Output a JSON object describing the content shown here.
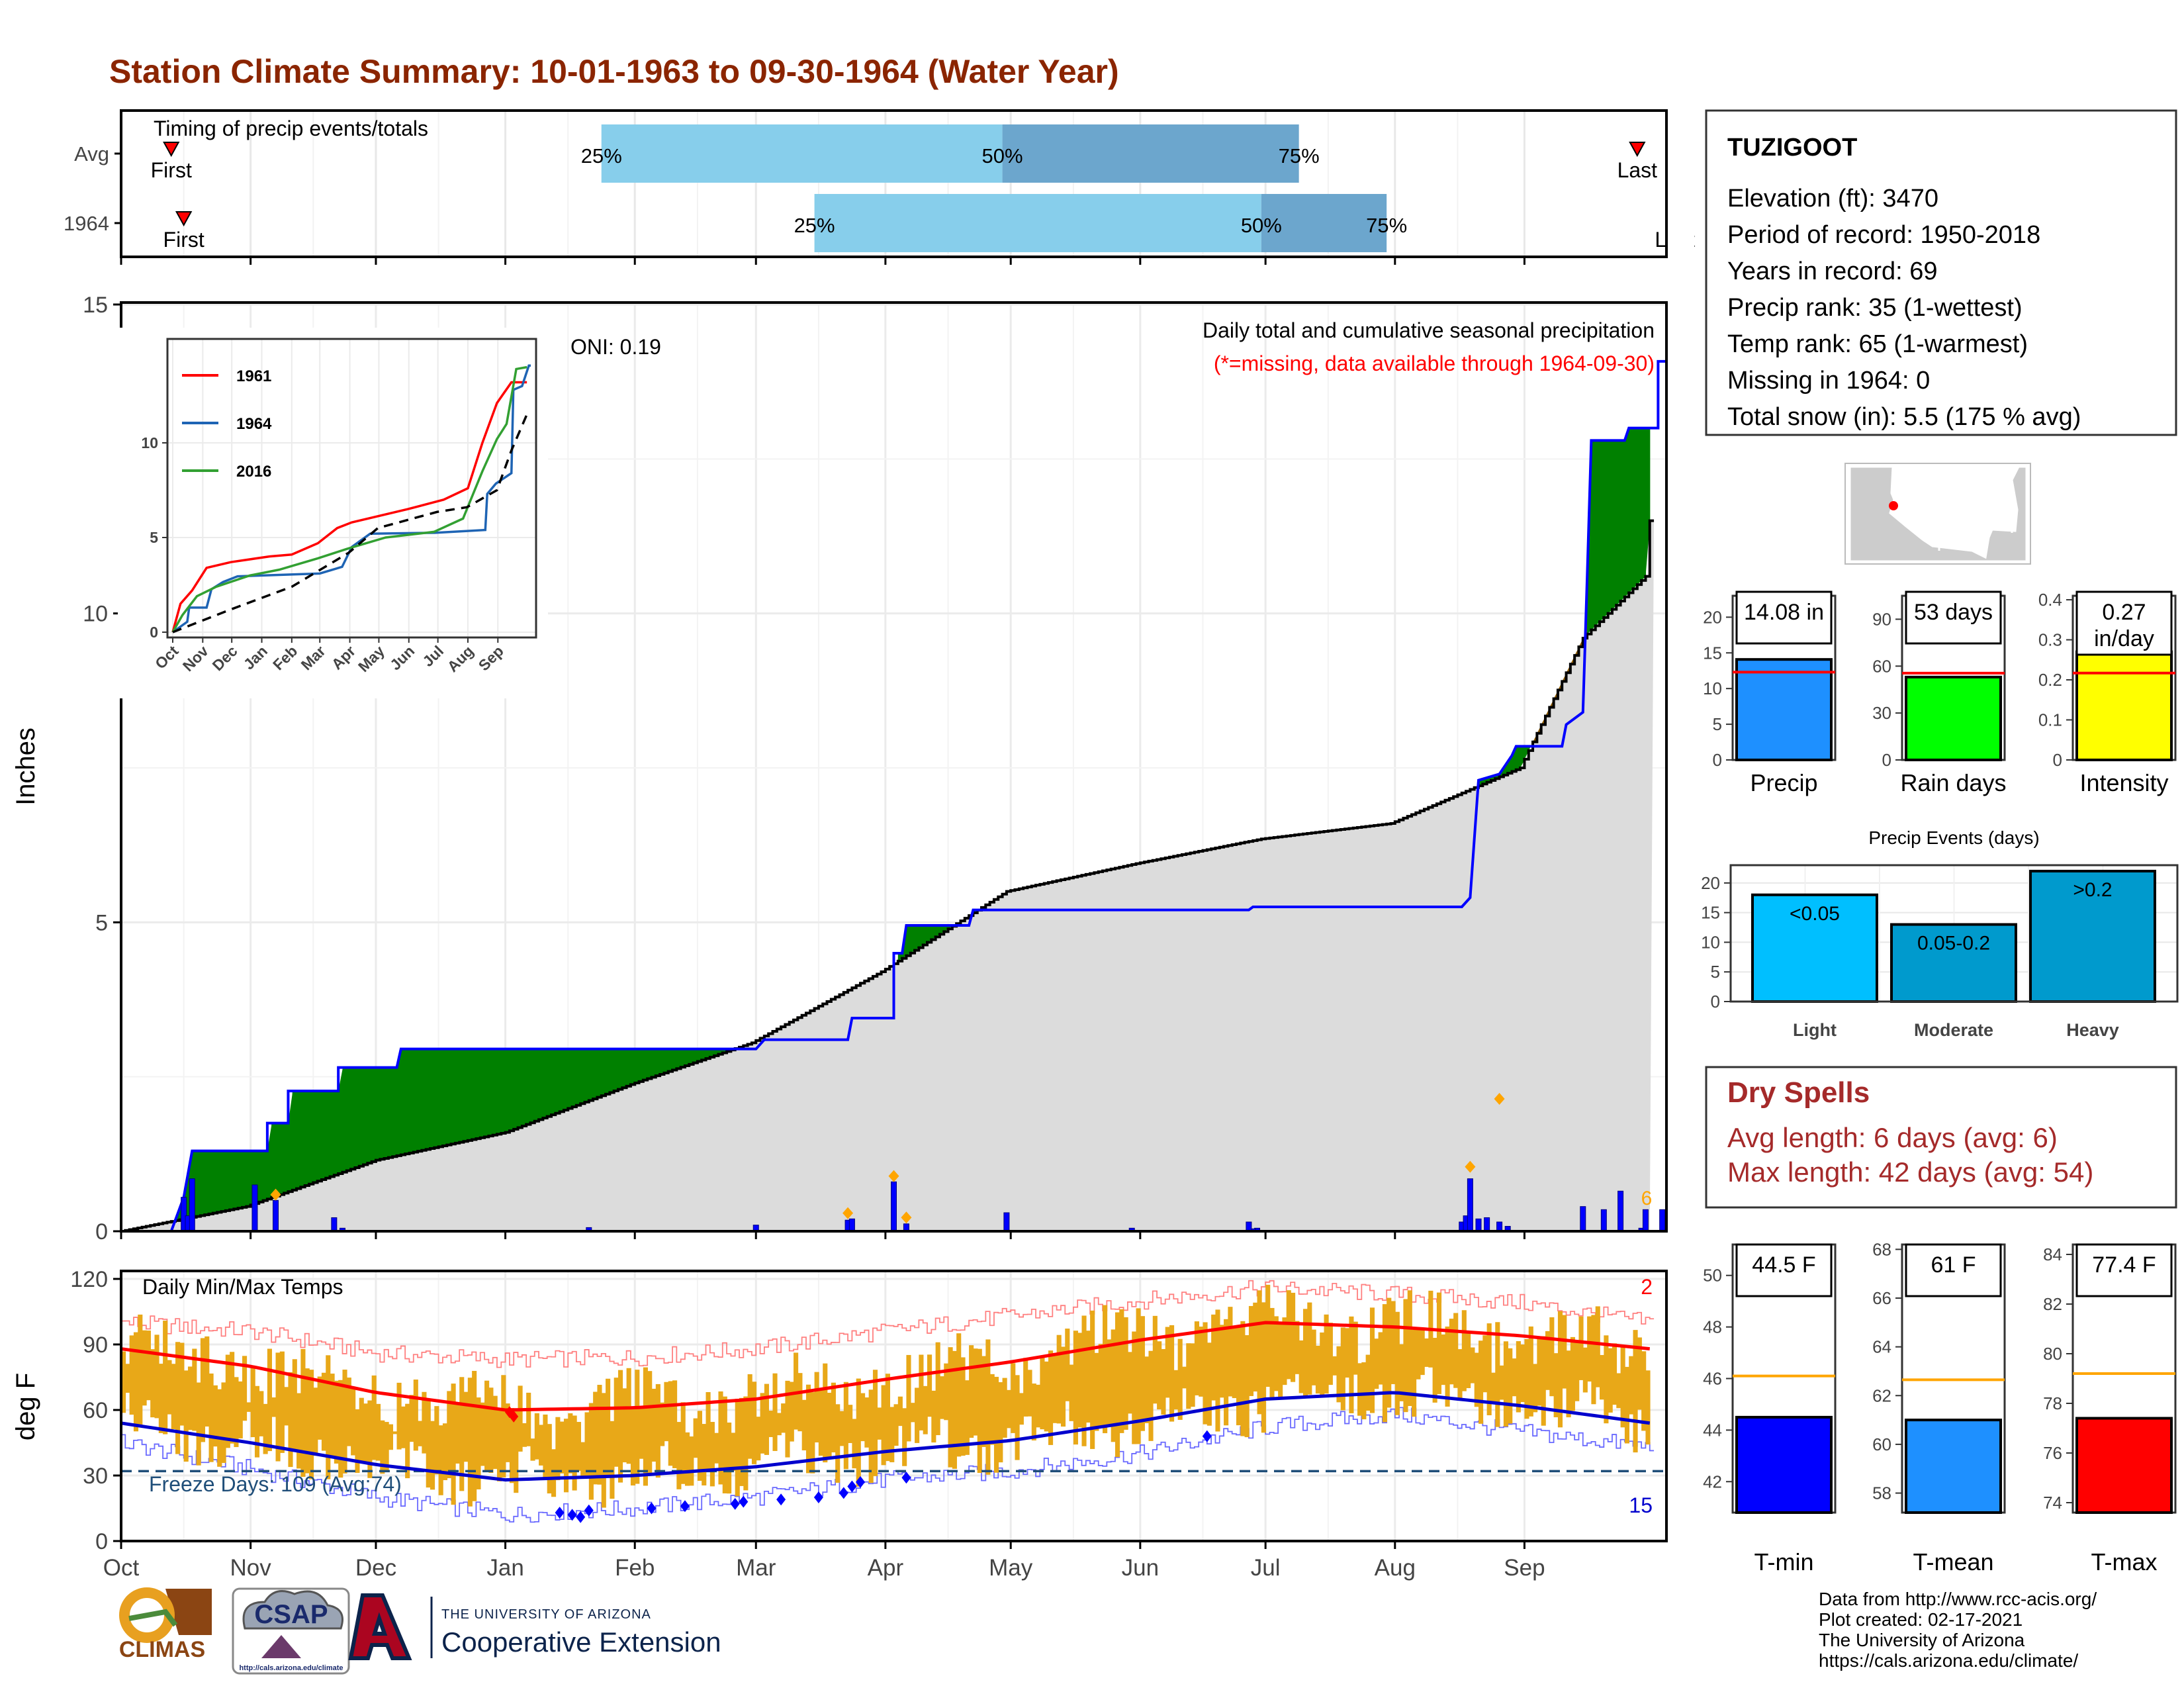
{
  "page": {
    "title": "Station Climate Summary: 10-01-1963 to 09-30-1964 (Water Year)",
    "footer": [
      "Data from http://www.rcc-acis.org/",
      "Plot created: 02-17-2021",
      "The University of Arizona",
      "https://cals.arizona.edu/climate/"
    ],
    "logos": {
      "climas": "CLIMAS",
      "csap": "CSAP",
      "csap_url": "http://cals.arizona.edu/climate",
      "ua_small": "THE UNIVERSITY OF ARIZONA",
      "ua_big": "Cooperative Extension"
    },
    "colors": {
      "title": "#8B2500",
      "wet": "#008000",
      "dry": "#8B5A00",
      "avg_fill": "#DCDCDC",
      "precip_bar": "#0000FF",
      "dot": "#FFA500",
      "temp_band": "#E8A818",
      "max_avg": "#FF0000",
      "min_avg": "#0000CD"
    }
  },
  "station": {
    "name": "TUZIGOOT",
    "lines": [
      "Elevation (ft): 3470",
      "Period of record: 1950-2018",
      "Years in record: 69",
      "Precip rank: 35 (1-wettest)",
      "Temp rank: 65 (1-warmest)",
      "Missing in 1964: 0",
      "Total snow (in): 5.5 (175 % avg)"
    ]
  },
  "dry_spells": {
    "title": "Dry Spells",
    "lines": [
      "Avg length: 6 days (avg: 6)",
      "Max length: 42 days (avg: 54)"
    ]
  },
  "chart_data": [
    {
      "id": "timing",
      "type": "bar",
      "title": "Timing of precip events/totals",
      "rows": [
        "Avg",
        "1964"
      ],
      "x_axis": "day of water year",
      "avg": {
        "first_day": 12,
        "p25_day": 115,
        "p50_day": 211,
        "p75_day": 282,
        "last_day": 363
      },
      "y1964": {
        "first_day": 15,
        "p25_day": 166,
        "p50_day": 273,
        "p75_day": 303,
        "last_day": 372
      },
      "labels": {
        "first": "First",
        "last": "Last",
        "last_1964": "Last",
        "p25": "25%",
        "p50": "50%",
        "p75": "75%"
      },
      "colors": {
        "light": "#87CEEB",
        "dark": "#6CA6CD",
        "marker": "#FF0000"
      }
    },
    {
      "id": "precip",
      "type": "area",
      "ylabel": "Inches",
      "ylim": [
        0,
        15
      ],
      "yticks": [
        0,
        5,
        10,
        15
      ],
      "month_ticks": [
        "Oct",
        "Nov",
        "Dec",
        "Jan",
        "Feb",
        "Mar",
        "Apr",
        "May",
        "Jun",
        "Jul",
        "Aug",
        "Sep"
      ],
      "titles": [
        "Daily total and cumulative seasonal precipitation",
        "(*=missing, data available through 1964-09-30)"
      ],
      "oni": "ONI: 0.19",
      "corner_count": "6",
      "avg_cumulative": [
        [
          0,
          0.0
        ],
        [
          30,
          0.4
        ],
        [
          61,
          1.15
        ],
        [
          92,
          1.6
        ],
        [
          123,
          2.4
        ],
        [
          151,
          3.05
        ],
        [
          182,
          4.2
        ],
        [
          212,
          5.5
        ],
        [
          243,
          5.95
        ],
        [
          273,
          6.35
        ],
        [
          304,
          6.6
        ],
        [
          335,
          7.5
        ],
        [
          350,
          9.6
        ],
        [
          365,
          10.6
        ],
        [
          366,
          11.5
        ]
      ],
      "cumulative_1964": [
        [
          0,
          0.0
        ],
        [
          12,
          0.0
        ],
        [
          15,
          0.55
        ],
        [
          17,
          1.3
        ],
        [
          35,
          1.3
        ],
        [
          35,
          1.75
        ],
        [
          40,
          1.75
        ],
        [
          40,
          2.27
        ],
        [
          48,
          2.27
        ],
        [
          52,
          2.27
        ],
        [
          52,
          2.65
        ],
        [
          66,
          2.65
        ],
        [
          67,
          2.95
        ],
        [
          152,
          2.95
        ],
        [
          154,
          3.1
        ],
        [
          174,
          3.1
        ],
        [
          175,
          3.45
        ],
        [
          185,
          3.45
        ],
        [
          185,
          4.5
        ],
        [
          187,
          4.5
        ],
        [
          188,
          4.95
        ],
        [
          203,
          4.95
        ],
        [
          204,
          5.2
        ],
        [
          270,
          5.2
        ],
        [
          271,
          5.25
        ],
        [
          321,
          5.25
        ],
        [
          323,
          5.4
        ],
        [
          325,
          7.3
        ],
        [
          330,
          7.4
        ],
        [
          333,
          7.7
        ],
        [
          334,
          7.85
        ],
        [
          345,
          7.85
        ],
        [
          346,
          8.2
        ],
        [
          350,
          8.4
        ],
        [
          351,
          10.55
        ],
        [
          352,
          12.8
        ],
        [
          360,
          12.8
        ],
        [
          361,
          13.0
        ],
        [
          368,
          13.0
        ],
        [
          368,
          14.08
        ],
        [
          370,
          14.08
        ]
      ],
      "daily_1964": [
        [
          15,
          0.55
        ],
        [
          16,
          0.25
        ],
        [
          17,
          0.85
        ],
        [
          32,
          0.75
        ],
        [
          37,
          0.5
        ],
        [
          51,
          0.22
        ],
        [
          53,
          0.05
        ],
        [
          112,
          0.06
        ],
        [
          152,
          0.1
        ],
        [
          174,
          0.18
        ],
        [
          175,
          0.2
        ],
        [
          185,
          0.8
        ],
        [
          188,
          0.12
        ],
        [
          212,
          0.3
        ],
        [
          242,
          0.05
        ],
        [
          272,
          0.05
        ],
        [
          271,
          0.04
        ],
        [
          270,
          0.15
        ],
        [
          321,
          0.15
        ],
        [
          322,
          0.25
        ],
        [
          323,
          0.85
        ],
        [
          325,
          0.2
        ],
        [
          327,
          0.22
        ],
        [
          330,
          0.15
        ],
        [
          332,
          0.08
        ],
        [
          350,
          0.4
        ],
        [
          355,
          0.35
        ],
        [
          359,
          0.65
        ],
        [
          364,
          0.05
        ],
        [
          365,
          0.35
        ],
        [
          369,
          0.35
        ]
      ],
      "daily_record_dots": [
        [
          37,
          0.55
        ],
        [
          174,
          0.25
        ],
        [
          185,
          0.85
        ],
        [
          188,
          0.18
        ],
        [
          323,
          1.0
        ],
        [
          330,
          2.1
        ]
      ],
      "inset": {
        "type": "line",
        "ylim": [
          0,
          15
        ],
        "yticks": [
          0,
          5,
          10
        ],
        "xticks": [
          "Oct",
          "Nov",
          "Dec",
          "Jan",
          "Feb",
          "Mar",
          "Apr",
          "May",
          "Jun",
          "Jul",
          "Aug",
          "Sep"
        ],
        "series": [
          {
            "name": "1961",
            "color": "#FF0000",
            "points": [
              [
                0,
                0.0
              ],
              [
                8,
                1.5
              ],
              [
                20,
                2.2
              ],
              [
                35,
                3.4
              ],
              [
                60,
                3.7
              ],
              [
                100,
                4.0
              ],
              [
                123,
                4.1
              ],
              [
                150,
                4.7
              ],
              [
                170,
                5.5
              ],
              [
                185,
                5.8
              ],
              [
                243,
                6.5
              ],
              [
                280,
                7.0
              ],
              [
                305,
                7.6
              ],
              [
                320,
                10.0
              ],
              [
                335,
                12.1
              ],
              [
                350,
                13.2
              ],
              [
                366,
                13.2
              ]
            ]
          },
          {
            "name": "1964",
            "color": "#1E64B4",
            "points": [
              [
                0,
                0.0
              ],
              [
                15,
                0.55
              ],
              [
                17,
                1.3
              ],
              [
                35,
                1.3
              ],
              [
                40,
                2.27
              ],
              [
                52,
                2.65
              ],
              [
                67,
                2.95
              ],
              [
                152,
                3.1
              ],
              [
                175,
                3.45
              ],
              [
                185,
                4.5
              ],
              [
                204,
                5.2
              ],
              [
                271,
                5.25
              ],
              [
                323,
                5.4
              ],
              [
                325,
                7.3
              ],
              [
                334,
                7.85
              ],
              [
                350,
                8.4
              ],
              [
                351,
                10.55
              ],
              [
                352,
                12.8
              ],
              [
                361,
                13.0
              ],
              [
                368,
                14.08
              ],
              [
                370,
                14.08
              ]
            ]
          },
          {
            "name": "2016",
            "color": "#32A032",
            "points": [
              [
                0,
                0.0
              ],
              [
                10,
                0.9
              ],
              [
                25,
                1.9
              ],
              [
                45,
                2.4
              ],
              [
                80,
                3.0
              ],
              [
                110,
                3.3
              ],
              [
                150,
                3.9
              ],
              [
                180,
                4.4
              ],
              [
                220,
                5.0
              ],
              [
                270,
                5.3
              ],
              [
                300,
                6.0
              ],
              [
                320,
                8.5
              ],
              [
                335,
                10.2
              ],
              [
                345,
                11.0
              ],
              [
                355,
                13.9
              ],
              [
                366,
                14.0
              ]
            ]
          },
          {
            "name": "",
            "color": "#000000",
            "points": [
              [
                0,
                0.0
              ],
              [
                60,
                1.2
              ],
              [
                123,
                2.4
              ],
              [
                182,
                4.2
              ],
              [
                212,
                5.5
              ],
              [
                273,
                6.35
              ],
              [
                304,
                6.6
              ],
              [
                335,
                7.5
              ],
              [
                350,
                9.6
              ],
              [
                366,
                11.5
              ]
            ]
          }
        ]
      }
    },
    {
      "id": "temps",
      "type": "line",
      "title": "Daily Min/Max Temps",
      "ylabel": "deg F",
      "ylim": [
        0,
        120
      ],
      "yticks": [
        0,
        30,
        60,
        90,
        120
      ],
      "month_ticks": [
        "Oct",
        "Nov",
        "Dec",
        "Jan",
        "Feb",
        "Mar",
        "Apr",
        "May",
        "Jun",
        "Jul",
        "Aug",
        "Sep"
      ],
      "freeze_label": "Freeze Days: 109 (Avg:74)",
      "freeze_line": 32,
      "record_high_count": "2",
      "record_low_count": "15",
      "avg_max": [
        [
          0,
          88
        ],
        [
          31,
          80
        ],
        [
          61,
          68
        ],
        [
          92,
          60
        ],
        [
          123,
          61
        ],
        [
          152,
          65
        ],
        [
          183,
          74
        ],
        [
          213,
          82
        ],
        [
          244,
          92
        ],
        [
          274,
          100
        ],
        [
          305,
          98
        ],
        [
          335,
          94
        ],
        [
          366,
          88
        ]
      ],
      "avg_min": [
        [
          0,
          54
        ],
        [
          31,
          45
        ],
        [
          61,
          35
        ],
        [
          92,
          28
        ],
        [
          123,
          30
        ],
        [
          152,
          34
        ],
        [
          183,
          41
        ],
        [
          213,
          46
        ],
        [
          244,
          55
        ],
        [
          274,
          65
        ],
        [
          305,
          68
        ],
        [
          335,
          62
        ],
        [
          366,
          54
        ]
      ],
      "record_max": [
        [
          0,
          100
        ],
        [
          31,
          96
        ],
        [
          61,
          86
        ],
        [
          92,
          83
        ],
        [
          123,
          84
        ],
        [
          152,
          88
        ],
        [
          183,
          96
        ],
        [
          213,
          103
        ],
        [
          244,
          110
        ],
        [
          274,
          116
        ],
        [
          305,
          113
        ],
        [
          335,
          109
        ],
        [
          366,
          100
        ]
      ],
      "record_min": [
        [
          0,
          45
        ],
        [
          31,
          33
        ],
        [
          61,
          20
        ],
        [
          92,
          12
        ],
        [
          123,
          15
        ],
        [
          152,
          20
        ],
        [
          183,
          28
        ],
        [
          213,
          32
        ],
        [
          244,
          40
        ],
        [
          274,
          52
        ],
        [
          305,
          58
        ],
        [
          335,
          50
        ],
        [
          366,
          43
        ]
      ],
      "record_high_days": [
        [
          93,
          59
        ],
        [
          94,
          57
        ]
      ],
      "record_low_days": [
        [
          105,
          13
        ],
        [
          108,
          12
        ],
        [
          110,
          11
        ],
        [
          112,
          14
        ],
        [
          127,
          15
        ],
        [
          135,
          16
        ],
        [
          147,
          17
        ],
        [
          149,
          18
        ],
        [
          158,
          19
        ],
        [
          167,
          20
        ],
        [
          173,
          22
        ],
        [
          175,
          25
        ],
        [
          177,
          27
        ],
        [
          188,
          29
        ],
        [
          260,
          48
        ]
      ]
    },
    {
      "id": "precip_bars",
      "type": "bar",
      "panels": [
        {
          "label": "Precip",
          "value": 14.08,
          "avg": 12.3,
          "ymax": 23,
          "yticks": [
            0,
            5,
            10,
            15,
            20
          ],
          "box": "14.08 in",
          "color": "#1E90FF"
        },
        {
          "label": "Rain days",
          "value": 53,
          "avg": 55.5,
          "ymax": 105,
          "yticks": [
            0,
            30,
            60,
            90
          ],
          "box": "53 days",
          "color": "#00FF00"
        },
        {
          "label": "Intensity",
          "value": 0.27,
          "avg": 0.217,
          "ymax": 0.41,
          "yticks": [
            0.0,
            0.1,
            0.2,
            0.3,
            0.4
          ],
          "box": "0.27\nin/day",
          "color": "#FFFF00"
        }
      ]
    },
    {
      "id": "events",
      "type": "bar",
      "title": "Precip Events (days)",
      "categories": [
        "Light",
        "Moderate",
        "Heavy"
      ],
      "values": [
        18,
        13,
        22
      ],
      "bar_labels": [
        "<0.05",
        "0.05-0.2",
        ">0.2"
      ],
      "ylim": [
        0,
        23
      ],
      "yticks": [
        0,
        5,
        10,
        15,
        20
      ],
      "colors": [
        "#00BFFF",
        "#009ACD",
        "#009ACD"
      ]
    },
    {
      "id": "temp_bars",
      "type": "bar",
      "panels": [
        {
          "label": "T-min",
          "value": 44.5,
          "avg": 46.1,
          "ymin": 40.8,
          "ymax": 51.2,
          "yticks": [
            42,
            44,
            46,
            48,
            50
          ],
          "box": "44.5 F",
          "color": "#0000FF"
        },
        {
          "label": "T-mean",
          "value": 61,
          "avg": 62.65,
          "ymin": 57.2,
          "ymax": 68.2,
          "yticks": [
            58,
            60,
            62,
            64,
            66,
            68
          ],
          "box": "61 F",
          "color": "#1E90FF"
        },
        {
          "label": "T-max",
          "value": 77.4,
          "avg": 79.2,
          "ymin": 73.6,
          "ymax": 84.4,
          "yticks": [
            74,
            76,
            78,
            80,
            82,
            84
          ],
          "box": "77.4 F",
          "color": "#FF0000"
        }
      ]
    }
  ]
}
